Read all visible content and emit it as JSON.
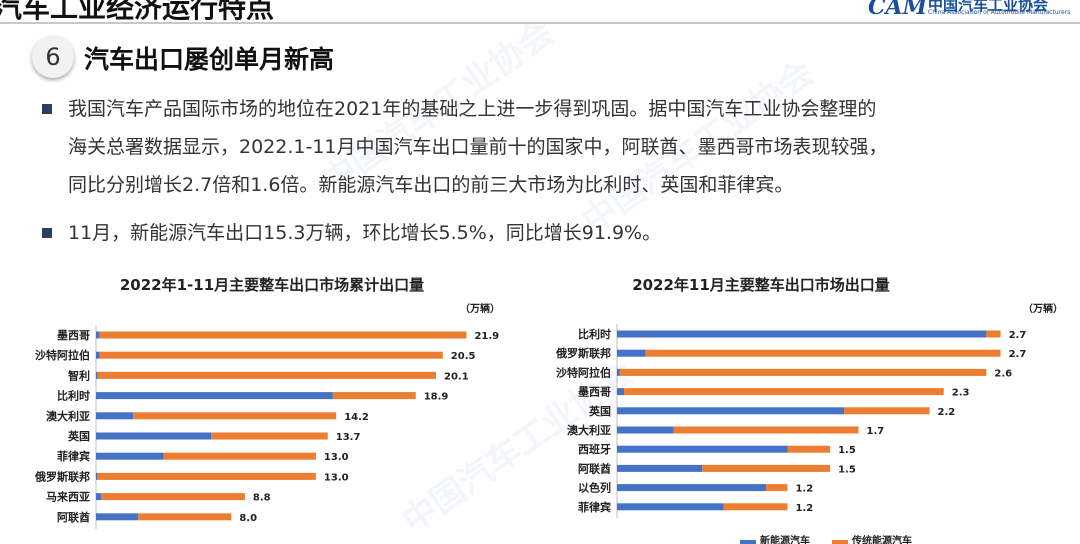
{
  "header": {
    "title": "汽车工业经济运行特点",
    "logo_mark": "CAM",
    "logo_cn": "中国汽车工业协会",
    "logo_en": "China Association of Automobile Manufacturers"
  },
  "section": {
    "number": "6",
    "title": "汽车出口屡创单月新高"
  },
  "bullets": [
    {
      "lines": [
        "我国汽车产品国际市场的地位在2021年的基础之上进一步得到巩固。据中国汽车工业协会整理的",
        "海关总署数据显示，2022.1-11月中国汽车出口量前十的国家中，阿联酋、墨西哥市场表现较强，",
        "同比分别增长2.7倍和1.6倍。新能源汽车出口的前三大市场为比利时、英国和菲律宾。"
      ]
    },
    {
      "lines": [
        "11月，新能源汽车出口15.3万辆，环比增长5.5%，同比增长91.9%。"
      ]
    }
  ],
  "watermark_text": "中国汽车工业协会",
  "chart_data": [
    {
      "type": "bar",
      "orientation": "horizontal",
      "stacked": true,
      "title": "2022年1-11月主要整车出口市场累计出口量",
      "unit": "（万辆）",
      "categories": [
        "墨西哥",
        "沙特阿拉伯",
        "智利",
        "比利时",
        "澳大利亚",
        "英国",
        "菲律宾",
        "俄罗斯联邦",
        "马来西亚",
        "阿联酋"
      ],
      "totals": [
        21.9,
        20.5,
        20.1,
        18.9,
        14.2,
        13.7,
        13.0,
        13.0,
        8.8,
        8.0
      ],
      "total_labels": [
        "21.9",
        "20.5",
        "20.1",
        "18.9",
        "14.2",
        "13.7",
        "13.0",
        "13.0",
        "8.8",
        "8.0"
      ],
      "series": [
        {
          "values": [
            0.2,
            0.2,
            0.1,
            14.0,
            2.2,
            6.8,
            4.0,
            0.1,
            0.3,
            2.5
          ],
          "color": "#4472c4"
        },
        {
          "values": [
            21.7,
            20.3,
            20.0,
            4.9,
            12.0,
            6.9,
            9.0,
            12.9,
            8.5,
            5.5
          ],
          "color": "#ed7d31"
        }
      ],
      "xlim": [
        0,
        24
      ],
      "grid": false
    },
    {
      "type": "bar",
      "orientation": "horizontal",
      "stacked": true,
      "title": "2022年11月主要整车出口市场出口量",
      "unit": "（万辆）",
      "categories": [
        "比利时",
        "俄罗斯联邦",
        "沙特阿拉伯",
        "墨西哥",
        "英国",
        "澳大利亚",
        "西班牙",
        "阿联酋",
        "以色列",
        "菲律宾"
      ],
      "totals": [
        2.7,
        2.7,
        2.6,
        2.3,
        2.2,
        1.7,
        1.5,
        1.5,
        1.2,
        1.2
      ],
      "total_labels": [
        "2.7",
        "2.7",
        "2.6",
        "2.3",
        "2.2",
        "1.7",
        "1.5",
        "1.5",
        "1.2",
        "1.2"
      ],
      "series": [
        {
          "name": "新能源汽车",
          "values": [
            2.6,
            0.2,
            0.02,
            0.05,
            1.6,
            0.4,
            1.2,
            0.6,
            1.05,
            0.75
          ],
          "color": "#4472c4"
        },
        {
          "name": "传统能源汽车",
          "values": [
            0.1,
            2.5,
            2.58,
            2.25,
            0.6,
            1.3,
            0.3,
            0.9,
            0.15,
            0.45
          ],
          "color": "#ed7d31"
        }
      ],
      "xlim": [
        0,
        2.9
      ],
      "legend": "bottom",
      "grid": false
    }
  ]
}
